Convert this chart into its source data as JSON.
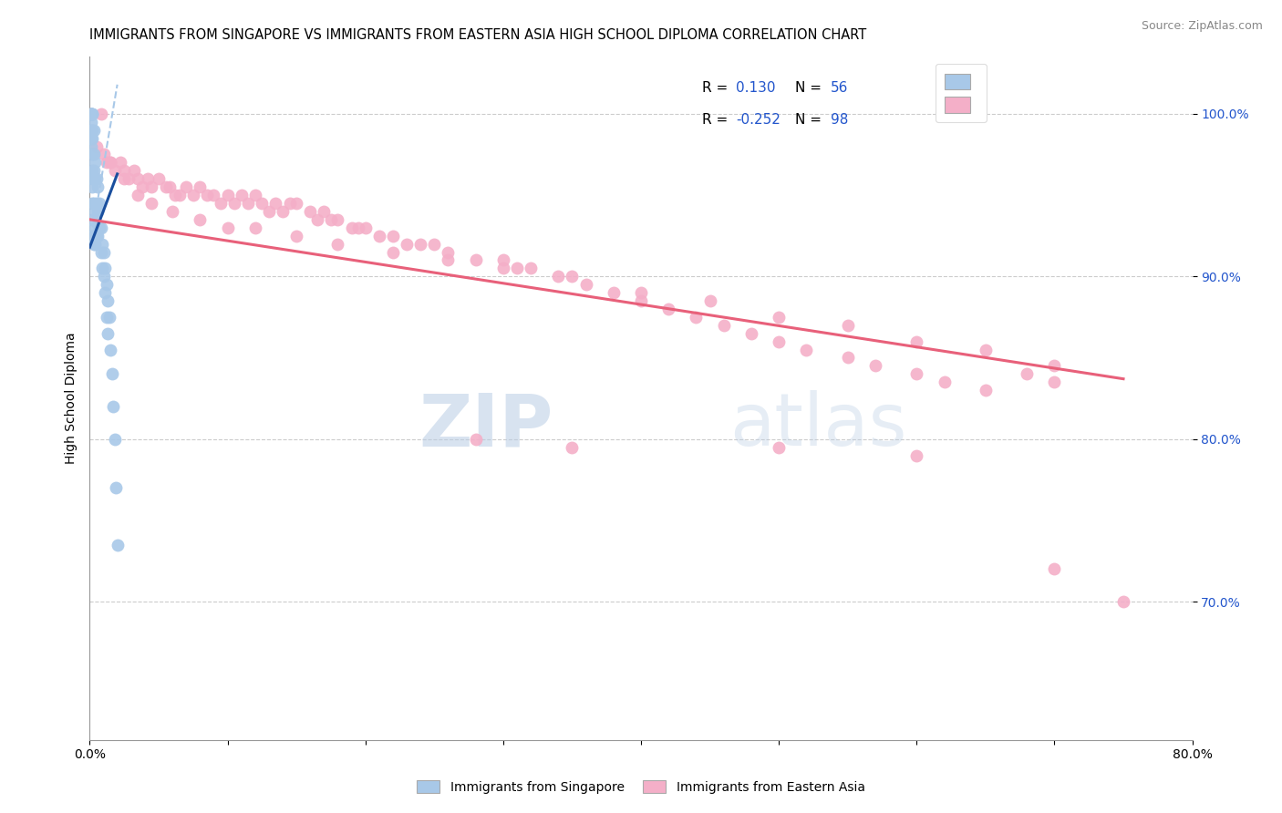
{
  "title": "IMMIGRANTS FROM SINGAPORE VS IMMIGRANTS FROM EASTERN ASIA HIGH SCHOOL DIPLOMA CORRELATION CHART",
  "source": "Source: ZipAtlas.com",
  "ylabel": "High School Diploma",
  "legend_blue_r_val": "0.130",
  "legend_blue_n_val": "56",
  "legend_pink_r_val": "-0.252",
  "legend_pink_n_val": "98",
  "y_tick_labels": [
    "100.0%",
    "90.0%",
    "80.0%",
    "70.0%"
  ],
  "y_tick_values": [
    1.0,
    0.9,
    0.8,
    0.7
  ],
  "x_lim": [
    0.0,
    0.8
  ],
  "y_lim": [
    0.615,
    1.035
  ],
  "watermark_zip": "ZIP",
  "watermark_atlas": "atlas",
  "legend_label_blue": "Immigrants from Singapore",
  "legend_label_pink": "Immigrants from Eastern Asia",
  "blue_color": "#a8c8e8",
  "pink_color": "#f4afc8",
  "blue_line_color": "#1a4f9e",
  "blue_dash_color": "#a8c8e8",
  "pink_line_color": "#e8607a",
  "dot_size": 100,
  "blue_scatter_x": [
    0.001,
    0.001,
    0.001,
    0.001,
    0.001,
    0.001,
    0.001,
    0.001,
    0.002,
    0.002,
    0.002,
    0.002,
    0.002,
    0.002,
    0.002,
    0.002,
    0.002,
    0.002,
    0.002,
    0.003,
    0.003,
    0.003,
    0.003,
    0.003,
    0.003,
    0.004,
    0.004,
    0.004,
    0.004,
    0.005,
    0.005,
    0.005,
    0.006,
    0.006,
    0.006,
    0.007,
    0.007,
    0.008,
    0.008,
    0.009,
    0.009,
    0.01,
    0.01,
    0.011,
    0.011,
    0.012,
    0.012,
    0.013,
    0.013,
    0.014,
    0.015,
    0.016,
    0.017,
    0.018,
    0.019,
    0.02
  ],
  "blue_scatter_y": [
    1.0,
    1.0,
    1.0,
    1.0,
    0.995,
    0.99,
    0.985,
    0.98,
    1.0,
    1.0,
    0.99,
    0.985,
    0.975,
    0.965,
    0.96,
    0.955,
    0.945,
    0.935,
    0.925,
    0.99,
    0.975,
    0.965,
    0.945,
    0.93,
    0.92,
    0.97,
    0.96,
    0.94,
    0.92,
    0.96,
    0.945,
    0.925,
    0.955,
    0.94,
    0.925,
    0.945,
    0.93,
    0.93,
    0.915,
    0.92,
    0.905,
    0.915,
    0.9,
    0.905,
    0.89,
    0.895,
    0.875,
    0.885,
    0.865,
    0.875,
    0.855,
    0.84,
    0.82,
    0.8,
    0.77,
    0.735
  ],
  "pink_scatter_x": [
    0.005,
    0.01,
    0.012,
    0.015,
    0.018,
    0.022,
    0.025,
    0.028,
    0.032,
    0.035,
    0.038,
    0.042,
    0.045,
    0.05,
    0.055,
    0.058,
    0.062,
    0.065,
    0.07,
    0.075,
    0.08,
    0.085,
    0.09,
    0.095,
    0.1,
    0.105,
    0.11,
    0.115,
    0.12,
    0.125,
    0.13,
    0.135,
    0.14,
    0.145,
    0.15,
    0.16,
    0.165,
    0.17,
    0.175,
    0.18,
    0.19,
    0.195,
    0.2,
    0.21,
    0.22,
    0.23,
    0.24,
    0.25,
    0.26,
    0.28,
    0.3,
    0.31,
    0.32,
    0.34,
    0.36,
    0.38,
    0.4,
    0.42,
    0.44,
    0.46,
    0.48,
    0.5,
    0.52,
    0.55,
    0.57,
    0.6,
    0.62,
    0.65,
    0.68,
    0.7,
    0.008,
    0.015,
    0.025,
    0.035,
    0.045,
    0.06,
    0.08,
    0.1,
    0.12,
    0.15,
    0.18,
    0.22,
    0.26,
    0.3,
    0.35,
    0.4,
    0.45,
    0.5,
    0.55,
    0.6,
    0.65,
    0.7,
    0.28,
    0.35,
    0.5,
    0.6,
    0.7,
    0.75
  ],
  "pink_scatter_y": [
    0.98,
    0.975,
    0.97,
    0.97,
    0.965,
    0.97,
    0.965,
    0.96,
    0.965,
    0.96,
    0.955,
    0.96,
    0.955,
    0.96,
    0.955,
    0.955,
    0.95,
    0.95,
    0.955,
    0.95,
    0.955,
    0.95,
    0.95,
    0.945,
    0.95,
    0.945,
    0.95,
    0.945,
    0.95,
    0.945,
    0.94,
    0.945,
    0.94,
    0.945,
    0.945,
    0.94,
    0.935,
    0.94,
    0.935,
    0.935,
    0.93,
    0.93,
    0.93,
    0.925,
    0.925,
    0.92,
    0.92,
    0.92,
    0.915,
    0.91,
    0.91,
    0.905,
    0.905,
    0.9,
    0.895,
    0.89,
    0.885,
    0.88,
    0.875,
    0.87,
    0.865,
    0.86,
    0.855,
    0.85,
    0.845,
    0.84,
    0.835,
    0.83,
    0.84,
    0.835,
    1.0,
    0.97,
    0.96,
    0.95,
    0.945,
    0.94,
    0.935,
    0.93,
    0.93,
    0.925,
    0.92,
    0.915,
    0.91,
    0.905,
    0.9,
    0.89,
    0.885,
    0.875,
    0.87,
    0.86,
    0.855,
    0.845,
    0.8,
    0.795,
    0.795,
    0.79,
    0.72,
    0.7
  ],
  "blue_trendline_x": [
    0.0,
    0.02
  ],
  "blue_trendline_y": [
    0.918,
    0.963
  ],
  "blue_dashline_x": [
    0.0,
    0.02
  ],
  "blue_dashline_y": [
    0.918,
    1.018
  ],
  "pink_trendline_x": [
    0.0,
    0.75
  ],
  "pink_trendline_y": [
    0.935,
    0.837
  ]
}
